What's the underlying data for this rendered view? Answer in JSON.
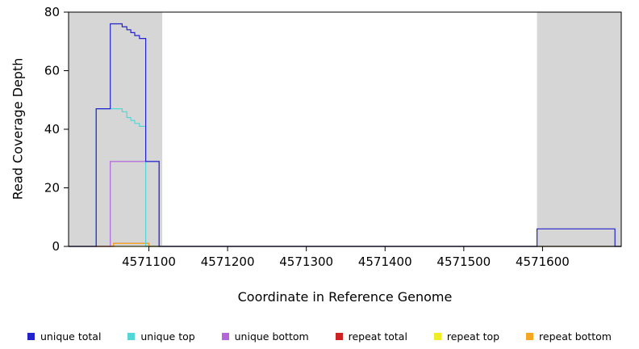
{
  "chart_data": {
    "type": "line",
    "title": "",
    "xlabel": "Coordinate in Reference Genome",
    "ylabel": "Read Coverage Depth",
    "xlim": [
      4570998,
      4571700
    ],
    "ylim": [
      0,
      80
    ],
    "x_ticks": [
      4571100,
      4571200,
      4571300,
      4571400,
      4571500,
      4571600
    ],
    "y_ticks": [
      0,
      20,
      40,
      60,
      80
    ],
    "grid": false,
    "legend_position": "bottom",
    "background_color": "#ffffff",
    "shaded_region_color": "#d6d6d6",
    "shaded_regions": [
      {
        "x0": 4570998,
        "x1": 4571117
      },
      {
        "x0": 4571593,
        "x1": 4571700
      }
    ],
    "series": [
      {
        "name": "repeat total",
        "color": "#cc2222",
        "points": [
          [
            4570998,
            0
          ],
          [
            4571055,
            0
          ],
          [
            4571055,
            1
          ],
          [
            4571100,
            1
          ],
          [
            4571100,
            0
          ],
          [
            4571700,
            0
          ]
        ]
      },
      {
        "name": "repeat top",
        "color": "#eeee22",
        "points": [
          [
            4570998,
            0
          ],
          [
            4571700,
            0
          ]
        ]
      },
      {
        "name": "repeat bottom",
        "color": "#f5a623",
        "points": [
          [
            4570998,
            0
          ],
          [
            4571055,
            0
          ],
          [
            4571055,
            1
          ],
          [
            4571100,
            1
          ],
          [
            4571100,
            0
          ],
          [
            4571700,
            0
          ]
        ]
      },
      {
        "name": "unique bottom",
        "color": "#b266d9",
        "points": [
          [
            4570998,
            0
          ],
          [
            4571051,
            0
          ],
          [
            4571051,
            29
          ],
          [
            4571113,
            29
          ],
          [
            4571113,
            0
          ],
          [
            4571700,
            0
          ]
        ]
      },
      {
        "name": "unique top",
        "color": "#55d6d6",
        "points": [
          [
            4570998,
            0
          ],
          [
            4571033,
            0
          ],
          [
            4571033,
            47
          ],
          [
            4571066,
            47
          ],
          [
            4571066,
            46
          ],
          [
            4571072,
            46
          ],
          [
            4571072,
            44
          ],
          [
            4571077,
            44
          ],
          [
            4571077,
            43
          ],
          [
            4571082,
            43
          ],
          [
            4571082,
            42
          ],
          [
            4571088,
            42
          ],
          [
            4571088,
            41
          ],
          [
            4571096,
            41
          ],
          [
            4571096,
            0
          ],
          [
            4571700,
            0
          ]
        ]
      },
      {
        "name": "unique total",
        "color": "#2222cc",
        "points": [
          [
            4570998,
            0
          ],
          [
            4571033,
            0
          ],
          [
            4571033,
            47
          ],
          [
            4571051,
            47
          ],
          [
            4571051,
            76
          ],
          [
            4571066,
            76
          ],
          [
            4571066,
            75
          ],
          [
            4571072,
            75
          ],
          [
            4571072,
            74
          ],
          [
            4571077,
            74
          ],
          [
            4571077,
            73
          ],
          [
            4571082,
            73
          ],
          [
            4571082,
            72
          ],
          [
            4571088,
            72
          ],
          [
            4571088,
            71
          ],
          [
            4571096,
            71
          ],
          [
            4571096,
            29
          ],
          [
            4571113,
            29
          ],
          [
            4571113,
            0
          ],
          [
            4571593,
            0
          ],
          [
            4571593,
            6
          ],
          [
            4571692,
            6
          ],
          [
            4571692,
            0
          ],
          [
            4571700,
            0
          ]
        ]
      }
    ],
    "legend": [
      {
        "label": "unique total",
        "color": "#2222cc"
      },
      {
        "label": "unique top",
        "color": "#55d6d6"
      },
      {
        "label": "unique bottom",
        "color": "#b266d9"
      },
      {
        "label": "repeat total",
        "color": "#cc2222"
      },
      {
        "label": "repeat top",
        "color": "#eeee22"
      },
      {
        "label": "repeat bottom",
        "color": "#f5a623"
      }
    ]
  }
}
